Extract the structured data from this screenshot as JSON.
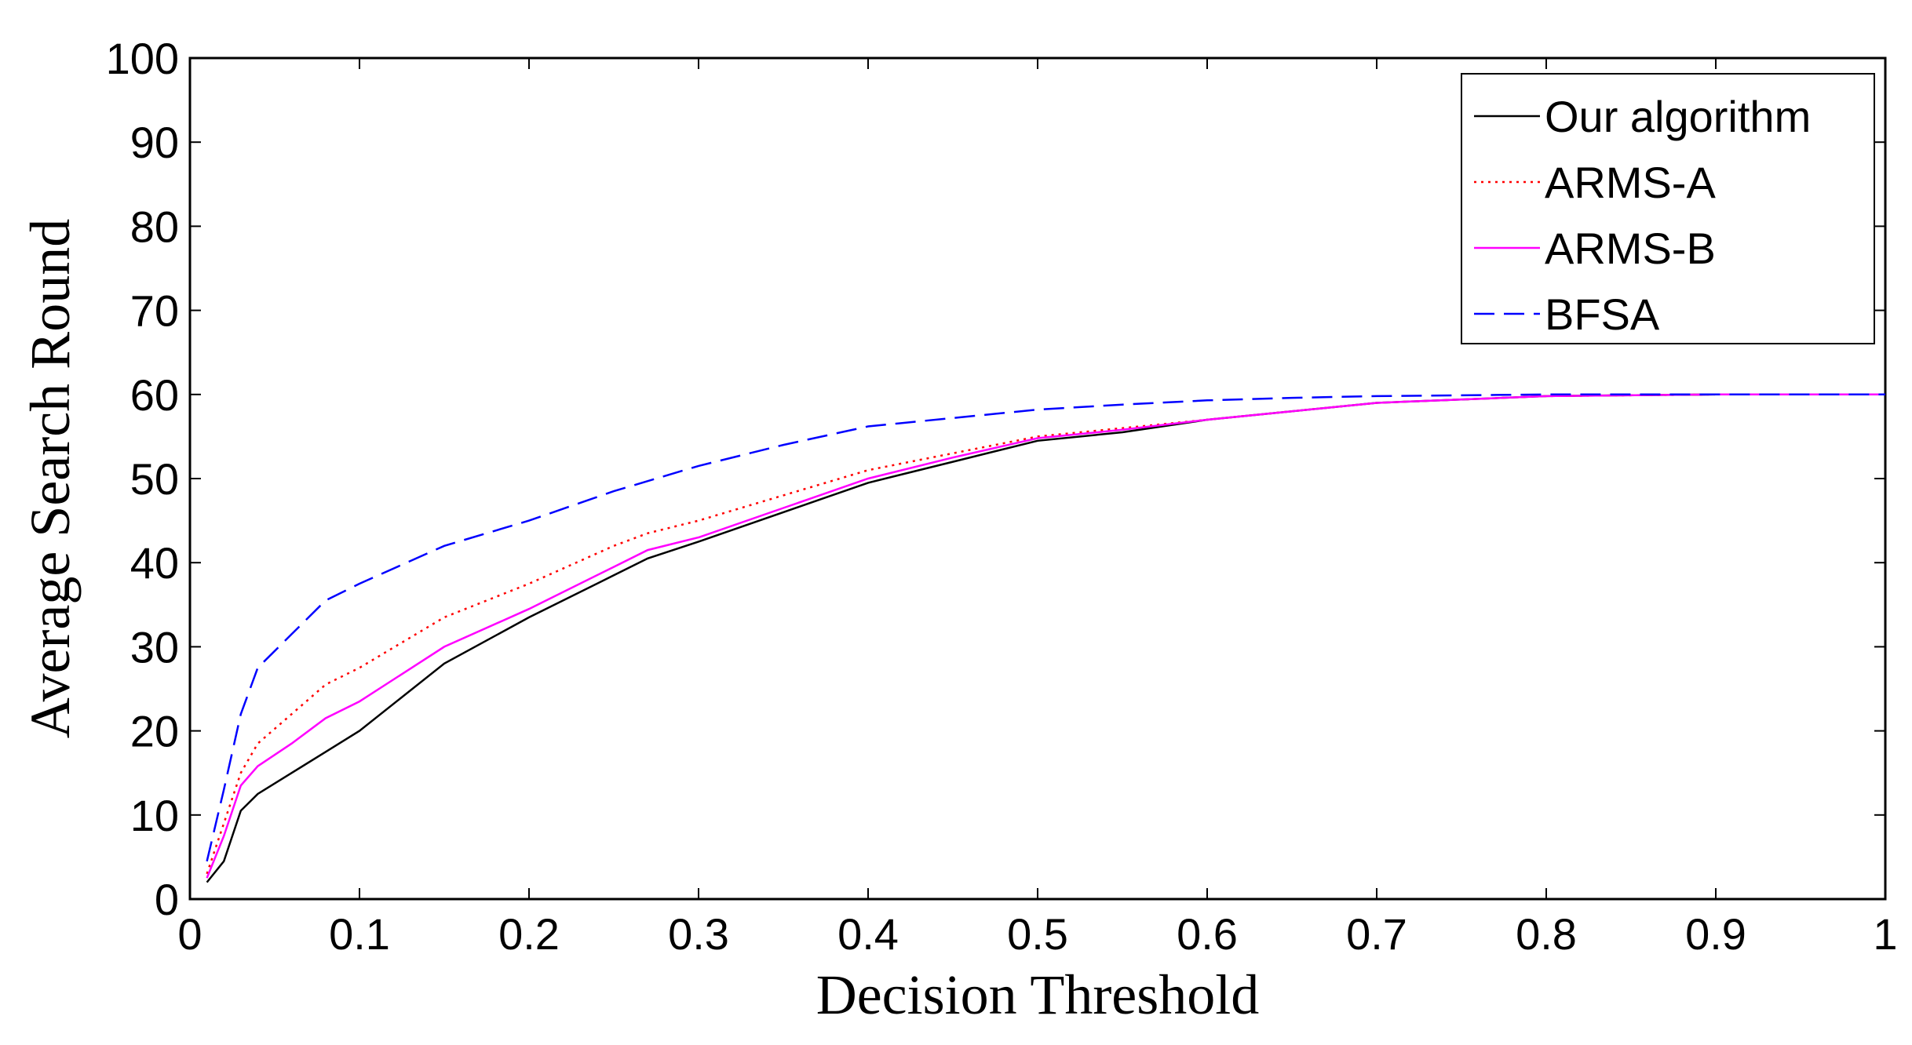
{
  "chart_data": {
    "type": "line",
    "xlabel": "Decision Threshold",
    "ylabel": "Average Search Round",
    "xlim": [
      0,
      1
    ],
    "ylim": [
      0,
      100
    ],
    "xticks": [
      0,
      0.1,
      0.2,
      0.3,
      0.4,
      0.5,
      0.6,
      0.7,
      0.8,
      0.9,
      1
    ],
    "xtick_labels": [
      "0",
      "0.1",
      "0.2",
      "0.3",
      "0.4",
      "0.5",
      "0.6",
      "0.7",
      "0.8",
      "0.9",
      "1"
    ],
    "yticks": [
      0,
      10,
      20,
      30,
      40,
      50,
      60,
      70,
      80,
      90,
      100
    ],
    "ytick_labels": [
      "0",
      "10",
      "20",
      "30",
      "40",
      "50",
      "60",
      "70",
      "80",
      "90",
      "100"
    ],
    "grid": false,
    "legend_position": "top-right",
    "series": [
      {
        "name": "Our algorithm",
        "color": "#000000",
        "style": "solid",
        "x": [
          0.01,
          0.02,
          0.03,
          0.04,
          0.06,
          0.08,
          0.1,
          0.15,
          0.2,
          0.25,
          0.27,
          0.3,
          0.35,
          0.4,
          0.45,
          0.5,
          0.55,
          0.6,
          0.65,
          0.7,
          0.8,
          0.9,
          1.0
        ],
        "y": [
          2,
          4.5,
          10.5,
          12.5,
          15,
          17.5,
          20,
          28,
          33.5,
          38.5,
          40.5,
          42.5,
          46,
          49.5,
          52,
          54.5,
          55.5,
          57,
          58,
          59,
          59.8,
          60,
          60
        ]
      },
      {
        "name": "ARMS-A",
        "color": "#ff0000",
        "style": "dotted",
        "x": [
          0.01,
          0.02,
          0.03,
          0.04,
          0.06,
          0.08,
          0.1,
          0.15,
          0.2,
          0.25,
          0.27,
          0.3,
          0.35,
          0.4,
          0.45,
          0.5,
          0.55,
          0.6,
          0.65,
          0.7,
          0.8,
          0.9,
          1.0
        ],
        "y": [
          3,
          9,
          15,
          18.5,
          22,
          25.5,
          27.5,
          33.5,
          37.5,
          42,
          43.5,
          45,
          48,
          51,
          53,
          55,
          56,
          57,
          58,
          59,
          59.8,
          60,
          60
        ]
      },
      {
        "name": "ARMS-B",
        "color": "#ff00ff",
        "style": "solid",
        "x": [
          0.01,
          0.02,
          0.03,
          0.04,
          0.06,
          0.08,
          0.1,
          0.15,
          0.2,
          0.25,
          0.27,
          0.3,
          0.35,
          0.4,
          0.45,
          0.5,
          0.55,
          0.6,
          0.65,
          0.7,
          0.8,
          0.9,
          1.0
        ],
        "y": [
          2.5,
          7.5,
          13.5,
          15.8,
          18.5,
          21.5,
          23.5,
          30,
          34.5,
          39.5,
          41.5,
          43,
          46.5,
          50,
          52.5,
          54.8,
          55.8,
          57,
          58,
          59,
          59.8,
          60,
          60
        ]
      },
      {
        "name": "BFSA",
        "color": "#0000ff",
        "style": "dashed",
        "x": [
          0.01,
          0.02,
          0.03,
          0.04,
          0.06,
          0.08,
          0.1,
          0.15,
          0.2,
          0.25,
          0.3,
          0.35,
          0.4,
          0.45,
          0.5,
          0.55,
          0.6,
          0.65,
          0.7,
          0.8,
          0.9,
          1.0
        ],
        "y": [
          4.5,
          13,
          22,
          27.5,
          31.5,
          35.5,
          37.5,
          42,
          45,
          48.5,
          51.5,
          54,
          56.2,
          57.2,
          58.2,
          58.8,
          59.3,
          59.6,
          59.8,
          60,
          60,
          60
        ]
      }
    ]
  }
}
